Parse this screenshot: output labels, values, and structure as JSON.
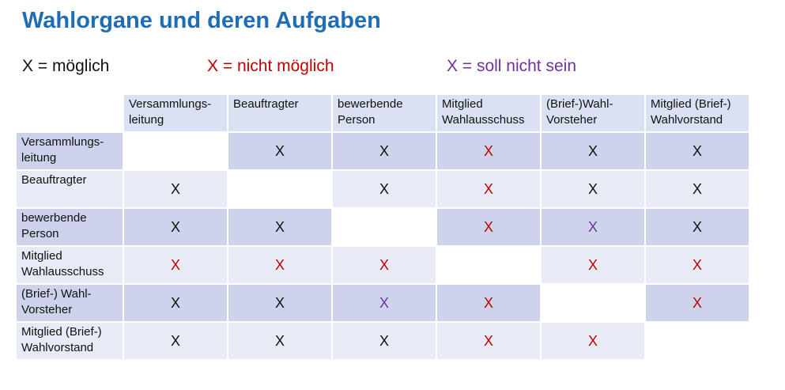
{
  "title": "Wahlorgane und deren Aufgaben",
  "legend": [
    {
      "text": "X = möglich",
      "color": "#111111"
    },
    {
      "text": "X = nicht möglich",
      "color": "#c00000"
    },
    {
      "text": "X = soll nicht sein",
      "color": "#7030a0"
    }
  ],
  "colors": {
    "possible": "#111111",
    "not_possible": "#c00000",
    "should_not": "#7030a0"
  },
  "columns": [
    "Versammlungs-\nleitung",
    "Beauftragter",
    "bewerbende\nPerson",
    "Mitglied\nWahlausschuss",
    "(Brief-)Wahl-\nVorsteher",
    "Mitglied (Brief-)\nWahlvorstand"
  ],
  "rows": [
    {
      "label": "Versammlungs-\nleitung",
      "cells": [
        {
          "v": "",
          "k": "diag"
        },
        {
          "v": "X",
          "k": "possible"
        },
        {
          "v": "X",
          "k": "possible"
        },
        {
          "v": "X",
          "k": "not_possible"
        },
        {
          "v": "X",
          "k": "possible"
        },
        {
          "v": "X",
          "k": "possible"
        }
      ]
    },
    {
      "label": "Beauftragter",
      "cells": [
        {
          "v": "X",
          "k": "possible"
        },
        {
          "v": "",
          "k": "diag"
        },
        {
          "v": "X",
          "k": "possible"
        },
        {
          "v": "X",
          "k": "not_possible"
        },
        {
          "v": "X",
          "k": "possible"
        },
        {
          "v": "X",
          "k": "possible"
        }
      ]
    },
    {
      "label": "bewerbende\nPerson",
      "cells": [
        {
          "v": "X",
          "k": "possible"
        },
        {
          "v": "X",
          "k": "possible"
        },
        {
          "v": "",
          "k": "diag"
        },
        {
          "v": "X",
          "k": "not_possible"
        },
        {
          "v": "X",
          "k": "should_not"
        },
        {
          "v": "X",
          "k": "possible"
        }
      ]
    },
    {
      "label": "Mitglied\nWahlausschuss",
      "cells": [
        {
          "v": "X",
          "k": "not_possible"
        },
        {
          "v": "X",
          "k": "not_possible"
        },
        {
          "v": "X",
          "k": "not_possible"
        },
        {
          "v": "",
          "k": "diag"
        },
        {
          "v": "X",
          "k": "not_possible"
        },
        {
          "v": "X",
          "k": "not_possible"
        }
      ]
    },
    {
      "label": "(Brief-) Wahl-\nVorsteher",
      "cells": [
        {
          "v": "X",
          "k": "possible"
        },
        {
          "v": "X",
          "k": "possible"
        },
        {
          "v": "X",
          "k": "should_not"
        },
        {
          "v": "X",
          "k": "not_possible"
        },
        {
          "v": "",
          "k": "diag"
        },
        {
          "v": "X",
          "k": "not_possible"
        }
      ]
    },
    {
      "label": "Mitglied (Brief-)\nWahlvorstand",
      "cells": [
        {
          "v": "X",
          "k": "possible"
        },
        {
          "v": "X",
          "k": "possible"
        },
        {
          "v": "X",
          "k": "possible"
        },
        {
          "v": "X",
          "k": "not_possible"
        },
        {
          "v": "X",
          "k": "not_possible"
        },
        {
          "v": "",
          "k": "diag"
        }
      ]
    }
  ]
}
